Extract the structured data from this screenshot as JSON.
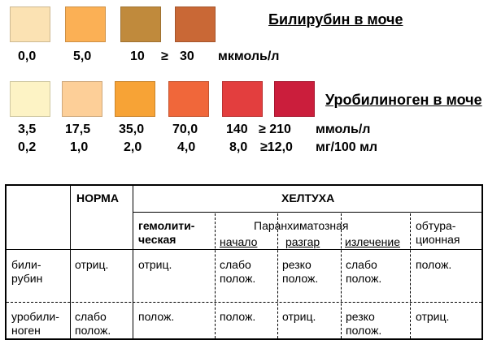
{
  "bilirubin": {
    "title": "Билирубин в моче",
    "swatches": [
      "#FBE2B3",
      "#FBB055",
      "#C08A3C",
      "#C96836"
    ],
    "labels": [
      "0,0",
      "5,0",
      "10",
      "≥",
      "30",
      "мкмоль/л"
    ]
  },
  "urobilinogen": {
    "title": "Уробилиноген в моче",
    "swatches": [
      "#FDF3C5",
      "#FDCF98",
      "#F7A336",
      "#F0673A",
      "#E33E3E",
      "#CB1E3C"
    ],
    "row1": [
      "3,5",
      "17,5",
      "35,0",
      "70,0",
      "140",
      "≥ 210",
      "ммоль/л"
    ],
    "row2": [
      "0,2",
      "1,0",
      "2,0",
      "4,0",
      "8,0",
      "≥12,0",
      "мг/100 мл"
    ]
  },
  "table": {
    "head_norm": "НОРМА",
    "head_jaundice": "ХЕЛТУХА",
    "hemolytic": [
      "гемолити-",
      "ческая"
    ],
    "parenchymal": "Паранхиматозная",
    "phases": [
      "начало",
      "разгар",
      "излечение"
    ],
    "obstructive": [
      "обтура-",
      "ционная"
    ],
    "rows": [
      {
        "name": [
          "били-",
          "рубин"
        ],
        "norm": [
          "отриц."
        ],
        "hemolytic": [
          "отриц."
        ],
        "start": [
          "слабо",
          "полож."
        ],
        "peak": [
          "резко",
          "полож."
        ],
        "recovery": [
          "слабо",
          "полож."
        ],
        "obstructive": [
          "полож."
        ]
      },
      {
        "name": [
          "уробили-",
          "ноген"
        ],
        "norm": [
          "слабо",
          "полож."
        ],
        "hemolytic": [
          "полож."
        ],
        "start": [
          "полож."
        ],
        "peak": [
          "отриц."
        ],
        "recovery": [
          "резко",
          "полож."
        ],
        "obstructive": [
          "отриц."
        ]
      }
    ]
  }
}
